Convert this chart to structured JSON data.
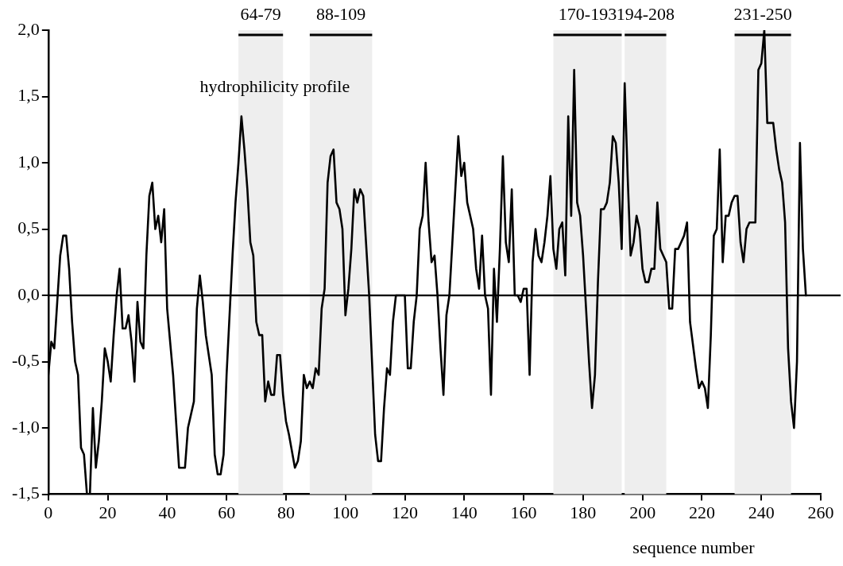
{
  "chart_data": {
    "type": "line",
    "title": "hydrophilicity profile",
    "xlabel": "sequence number",
    "x": [
      0,
      1,
      2,
      3,
      4,
      5,
      6,
      7,
      8,
      9,
      10,
      11,
      12,
      13,
      14,
      15,
      16,
      17,
      18,
      19,
      20,
      21,
      22,
      23,
      24,
      25,
      26,
      27,
      28,
      29,
      30,
      31,
      32,
      33,
      34,
      35,
      36,
      37,
      38,
      39,
      40,
      42,
      44,
      46,
      47,
      48,
      49,
      50,
      51,
      52,
      53,
      55,
      56,
      57,
      58,
      59,
      60,
      62,
      63,
      64,
      65,
      66,
      67,
      68,
      69,
      70,
      71,
      72,
      73,
      74,
      75,
      76,
      77,
      78,
      79,
      80,
      81,
      83,
      84,
      85,
      86,
      87,
      88,
      89,
      90,
      91,
      92,
      93,
      94,
      95,
      96,
      97,
      98,
      99,
      100,
      101,
      102,
      103,
      104,
      105,
      106,
      108,
      110,
      111,
      112,
      113,
      114,
      115,
      116,
      117,
      118,
      120,
      121,
      122,
      123,
      124,
      125,
      126,
      127,
      128,
      129,
      130,
      131,
      132,
      133,
      134,
      135,
      136,
      137,
      138,
      139,
      140,
      141,
      142,
      143,
      144,
      145,
      146,
      147,
      148,
      149,
      150,
      151,
      152,
      153,
      154,
      155,
      156,
      157,
      158,
      159,
      160,
      161,
      162,
      163,
      164,
      165,
      166,
      167,
      168,
      169,
      170,
      171,
      172,
      173,
      174,
      175,
      176,
      177,
      178,
      179,
      180,
      181,
      182,
      183,
      184,
      185,
      186,
      187,
      188,
      189,
      190,
      191,
      192,
      193,
      194,
      195,
      196,
      197,
      198,
      199,
      200,
      201,
      202,
      203,
      204,
      205,
      206,
      207,
      208,
      209,
      210,
      211,
      212,
      213,
      214,
      215,
      216,
      218,
      219,
      220,
      221,
      222,
      223,
      224,
      225,
      226,
      227,
      228,
      229,
      230,
      231,
      232,
      233,
      234,
      235,
      236,
      238,
      239,
      240,
      241,
      242,
      244,
      245,
      246,
      247,
      248,
      249,
      250,
      251,
      252,
      253,
      254,
      255
    ],
    "series": [
      {
        "color": "#000000",
        "values": [
          -0.6,
          -0.35,
          -0.4,
          -0.05,
          0.3,
          0.45,
          0.45,
          0.2,
          -0.2,
          -0.5,
          -0.6,
          -1.15,
          -1.2,
          -1.5,
          -1.5,
          -0.85,
          -1.3,
          -1.1,
          -0.8,
          -0.4,
          -0.5,
          -0.65,
          -0.3,
          0.0,
          0.2,
          -0.25,
          -0.25,
          -0.15,
          -0.35,
          -0.65,
          -0.05,
          -0.35,
          -0.4,
          0.3,
          0.75,
          0.85,
          0.5,
          0.6,
          0.4,
          0.65,
          -0.1,
          -0.6,
          -1.3,
          -1.3,
          -1.0,
          -0.9,
          -0.8,
          -0.1,
          0.15,
          -0.05,
          -0.3,
          -0.6,
          -1.2,
          -1.35,
          -1.35,
          -1.2,
          -0.6,
          0.3,
          0.7,
          1.0,
          1.35,
          1.1,
          0.8,
          0.4,
          0.3,
          -0.2,
          -0.3,
          -0.3,
          -0.8,
          -0.65,
          -0.75,
          -0.75,
          -0.45,
          -0.45,
          -0.75,
          -0.95,
          -1.05,
          -1.3,
          -1.25,
          -1.1,
          -0.6,
          -0.7,
          -0.65,
          -0.7,
          -0.55,
          -0.6,
          -0.1,
          0.05,
          0.85,
          1.05,
          1.1,
          0.7,
          0.65,
          0.5,
          -0.15,
          0.05,
          0.35,
          0.8,
          0.7,
          0.8,
          0.75,
          0.0,
          -1.05,
          -1.25,
          -1.25,
          -0.85,
          -0.55,
          -0.6,
          -0.2,
          0.0,
          0.0,
          0.0,
          -0.55,
          -0.55,
          -0.2,
          0.0,
          0.5,
          0.6,
          1.0,
          0.55,
          0.25,
          0.3,
          0.0,
          -0.4,
          -0.75,
          -0.15,
          0.0,
          0.4,
          0.8,
          1.2,
          0.9,
          1.0,
          0.7,
          0.6,
          0.5,
          0.2,
          0.05,
          0.45,
          0.0,
          -0.1,
          -0.75,
          0.2,
          -0.2,
          0.35,
          1.05,
          0.4,
          0.25,
          0.8,
          0.0,
          0.0,
          -0.05,
          0.05,
          0.05,
          -0.6,
          0.25,
          0.5,
          0.3,
          0.25,
          0.4,
          0.6,
          0.9,
          0.35,
          0.2,
          0.5,
          0.55,
          0.15,
          1.35,
          0.6,
          1.7,
          0.7,
          0.6,
          0.3,
          -0.1,
          -0.5,
          -0.85,
          -0.6,
          0.1,
          0.65,
          0.65,
          0.7,
          0.85,
          1.2,
          1.15,
          0.85,
          0.35,
          1.6,
          0.9,
          0.3,
          0.4,
          0.6,
          0.5,
          0.2,
          0.1,
          0.1,
          0.2,
          0.2,
          0.7,
          0.35,
          0.3,
          0.25,
          -0.1,
          -0.1,
          0.35,
          0.35,
          0.4,
          0.45,
          0.55,
          -0.2,
          -0.55,
          -0.7,
          -0.65,
          -0.7,
          -0.85,
          -0.3,
          0.45,
          0.5,
          1.1,
          0.25,
          0.6,
          0.6,
          0.7,
          0.75,
          0.75,
          0.4,
          0.25,
          0.5,
          0.55,
          0.55,
          1.7,
          1.75,
          2.0,
          1.3,
          1.3,
          1.1,
          0.95,
          0.85,
          0.55,
          -0.4,
          -0.8,
          -1.0,
          -0.5,
          1.15,
          0.35,
          0.0
        ]
      }
    ],
    "xlim": [
      0,
      260
    ],
    "xticks": [
      0,
      20,
      40,
      60,
      80,
      100,
      120,
      140,
      160,
      180,
      200,
      220,
      240,
      260
    ],
    "ylim": [
      -1.5,
      2.0
    ],
    "yticks": [
      {
        "value": -1.5,
        "label": "-1,5"
      },
      {
        "value": -1,
        "label": "-1,0"
      },
      {
        "value": -0.5,
        "label": "-0,5"
      },
      {
        "value": 0,
        "label": "0,0"
      },
      {
        "value": 0.5,
        "label": "0,5"
      },
      {
        "value": 1,
        "label": "1,0"
      },
      {
        "value": 1.5,
        "label": "1,5"
      },
      {
        "value": 2,
        "label": "2,0"
      }
    ],
    "ref_lines": [
      {
        "axis": "y",
        "value": 0,
        "color": "#000000"
      }
    ],
    "bands": [
      {
        "axis": "x",
        "from": 64,
        "to": 79,
        "label": "64-79"
      },
      {
        "axis": "x",
        "from": 88,
        "to": 109,
        "label": "88-109"
      },
      {
        "axis": "x",
        "from": 170,
        "to": 193,
        "label": "170-193"
      },
      {
        "axis": "x",
        "from": 194,
        "to": 208,
        "label": "194-208"
      },
      {
        "axis": "x",
        "from": 231,
        "to": 250,
        "label": "231-250"
      }
    ],
    "grid": false,
    "legend": false,
    "marker": "none",
    "line_style": "solid"
  }
}
